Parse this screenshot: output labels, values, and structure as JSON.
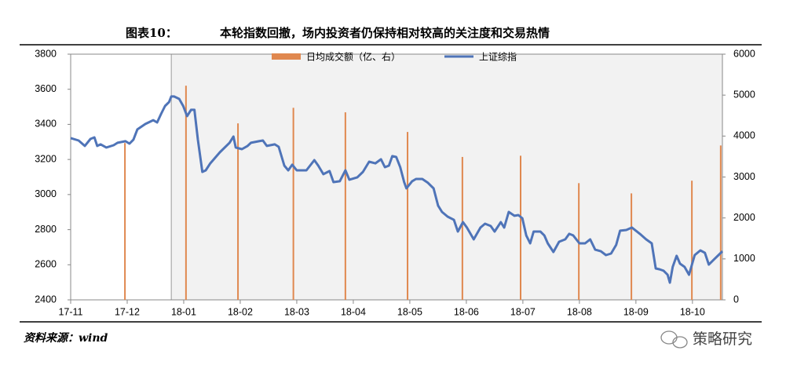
{
  "chart_data": {
    "type": "line",
    "figure_label": "图表10：",
    "title": "本轮指数回撤，场内投资者仍保持相对较高的关注度和交易热情",
    "source": "资料来源：wind",
    "watermark": "策略研究",
    "xlim": [
      0,
      11.53
    ],
    "xticks": [
      {
        "value": 0,
        "label": "17-11"
      },
      {
        "value": 1,
        "label": "17-12"
      },
      {
        "value": 2,
        "label": "18-01"
      },
      {
        "value": 3,
        "label": "18-02"
      },
      {
        "value": 4,
        "label": "18-03"
      },
      {
        "value": 5,
        "label": "18-04"
      },
      {
        "value": 6,
        "label": "18-05"
      },
      {
        "value": 7,
        "label": "18-06"
      },
      {
        "value": 8,
        "label": "18-07"
      },
      {
        "value": 9,
        "label": "18-08"
      },
      {
        "value": 10,
        "label": "18-09"
      },
      {
        "value": 11,
        "label": "18-10"
      }
    ],
    "ylim": [
      2400,
      3800
    ],
    "yticks": [
      2400,
      2600,
      2800,
      3000,
      3200,
      3400,
      3600,
      3800
    ],
    "y2lim": [
      0,
      6000
    ],
    "y2ticks": [
      0,
      1000,
      2000,
      3000,
      4000,
      5000,
      6000
    ],
    "shaded_xrange": [
      1.78,
      11.53
    ],
    "series": [
      {
        "name": "日均成交额（亿、右）",
        "type": "bar",
        "axis": "y2",
        "color": "#e0884f",
        "x": [
          0.96,
          2.04,
          2.96,
          3.94,
          4.86,
          5.96,
          6.93,
          7.96,
          8.99,
          9.92,
          10.99,
          11.5
        ],
        "values": [
          3830,
          5230,
          4310,
          4690,
          4580,
          4100,
          3490,
          3520,
          2850,
          2600,
          2910,
          3770
        ]
      },
      {
        "name": "上证综指",
        "type": "line",
        "color": "#4f74b8",
        "x": [
          0,
          0.14,
          0.25,
          0.35,
          0.42,
          0.47,
          0.53,
          0.63,
          0.76,
          0.83,
          0.97,
          1.04,
          1.11,
          1.18,
          1.32,
          1.46,
          1.53,
          1.6,
          1.67,
          1.74,
          1.78,
          1.83,
          1.92,
          1.99,
          2.06,
          2.13,
          2.19,
          2.25,
          2.33,
          2.39,
          2.47,
          2.64,
          2.81,
          2.88,
          2.92,
          3.03,
          3.13,
          3.19,
          3.33,
          3.4,
          3.47,
          3.61,
          3.68,
          3.78,
          3.85,
          3.92,
          4,
          4.17,
          4.31,
          4.38,
          4.47,
          4.58,
          4.65,
          4.76,
          4.86,
          4.93,
          5.07,
          5.17,
          5.28,
          5.39,
          5.49,
          5.56,
          5.63,
          5.69,
          5.76,
          5.83,
          5.9,
          5.94,
          6.04,
          6.11,
          6.22,
          6.32,
          6.42,
          6.5,
          6.57,
          6.67,
          6.78,
          6.85,
          6.94,
          7.01,
          7.13,
          7.25,
          7.33,
          7.43,
          7.5,
          7.61,
          7.67,
          7.75,
          7.85,
          7.92,
          7.99,
          8.06,
          8.13,
          8.19,
          8.31,
          8.38,
          8.44,
          8.54,
          8.64,
          8.75,
          8.82,
          8.89,
          9,
          9.1,
          9.19,
          9.28,
          9.38,
          9.47,
          9.56,
          9.65,
          9.72,
          9.83,
          9.93,
          10.07,
          10.18,
          10.28,
          10.35,
          10.42,
          10.49,
          10.56,
          10.6,
          10.65,
          10.72,
          10.78,
          10.86,
          10.94,
          11.04,
          11.14,
          11.22,
          11.29,
          11.39,
          11.46,
          11.53
        ],
        "values": [
          3322,
          3308,
          3277,
          3317,
          3326,
          3277,
          3286,
          3268,
          3281,
          3295,
          3304,
          3290,
          3313,
          3371,
          3402,
          3424,
          3411,
          3460,
          3505,
          3527,
          3559,
          3559,
          3545,
          3505,
          3447,
          3483,
          3483,
          3313,
          3129,
          3138,
          3178,
          3241,
          3295,
          3331,
          3268,
          3259,
          3277,
          3295,
          3304,
          3308,
          3277,
          3286,
          3272,
          3165,
          3138,
          3170,
          3138,
          3138,
          3196,
          3165,
          3116,
          3134,
          3071,
          3076,
          3138,
          3085,
          3098,
          3129,
          3187,
          3178,
          3201,
          3156,
          3165,
          3219,
          3214,
          3156,
          3071,
          3035,
          3076,
          3089,
          3089,
          3067,
          3035,
          2937,
          2901,
          2874,
          2856,
          2789,
          2843,
          2812,
          2745,
          2812,
          2834,
          2821,
          2789,
          2843,
          2812,
          2901,
          2879,
          2883,
          2865,
          2767,
          2722,
          2789,
          2789,
          2767,
          2722,
          2673,
          2731,
          2745,
          2776,
          2767,
          2722,
          2722,
          2745,
          2686,
          2677,
          2655,
          2664,
          2713,
          2794,
          2798,
          2812,
          2776,
          2745,
          2722,
          2579,
          2574,
          2566,
          2543,
          2498,
          2588,
          2651,
          2606,
          2588,
          2543,
          2655,
          2682,
          2668,
          2601,
          2633,
          2655,
          2677
        ]
      }
    ]
  }
}
